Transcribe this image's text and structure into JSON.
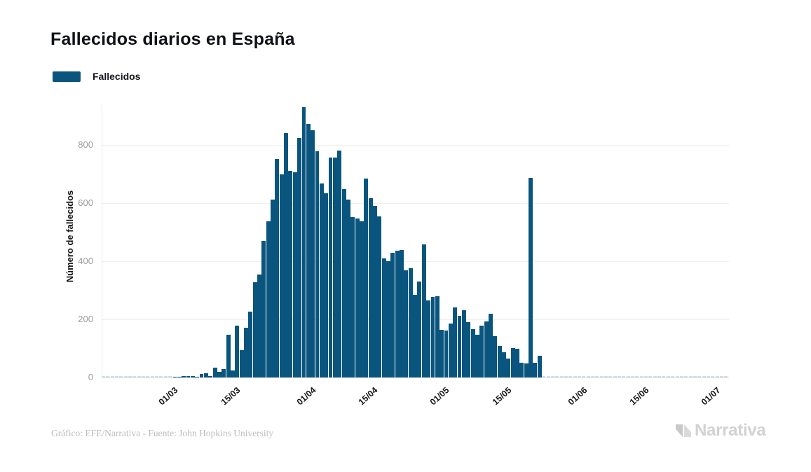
{
  "page": {
    "title": "Fallecidos diarios en España"
  },
  "legend": {
    "label": "Fallecidos"
  },
  "y_axis": {
    "title": "Número de fallecidos",
    "ticks": [
      0,
      200,
      400,
      600,
      800
    ]
  },
  "x_axis": {
    "ticks": [
      {
        "label": "01/03",
        "day": 14
      },
      {
        "label": "15/03",
        "day": 28
      },
      {
        "label": "01/04",
        "day": 45
      },
      {
        "label": "15/04",
        "day": 59
      },
      {
        "label": "01/05",
        "day": 75
      },
      {
        "label": "15/05",
        "day": 89
      },
      {
        "label": "01/06",
        "day": 106
      },
      {
        "label": "15/06",
        "day": 120
      },
      {
        "label": "01/07",
        "day": 136
      }
    ]
  },
  "footer": {
    "credit": "Gráfico: EFE/Narrativa - Fuente: John Hopkins University"
  },
  "logo": {
    "text": "Narrativa"
  },
  "colors": {
    "bar": "#0a557e",
    "zero_mark": "#cfdfe9",
    "grid": "#efefef",
    "y_label": "#9b9b9b",
    "x_label": "#17181a",
    "title": "#0e1116",
    "footer": "#bdbdbd",
    "logo": "#d2d2d2"
  },
  "chart_data": {
    "type": "bar",
    "title": "Fallecidos diarios en España",
    "xlabel": "",
    "ylabel": "Número de fallecidos",
    "ylim": [
      0,
      950
    ],
    "grid": true,
    "legend_position": "top-left",
    "domain": {
      "start_date": "16/02",
      "end_date": "05/07",
      "total_days": 141,
      "first_bar_day_index": 16
    },
    "series_name": "Fallecidos",
    "dates": [
      "03/03",
      "04/03",
      "05/03",
      "06/03",
      "07/03",
      "08/03",
      "09/03",
      "10/03",
      "11/03",
      "12/03",
      "13/03",
      "14/03",
      "15/03",
      "16/03",
      "17/03",
      "18/03",
      "19/03",
      "20/03",
      "21/03",
      "22/03",
      "23/03",
      "24/03",
      "25/03",
      "26/03",
      "27/03",
      "28/03",
      "29/03",
      "30/03",
      "31/03",
      "01/04",
      "02/04",
      "03/04",
      "04/04",
      "05/04",
      "06/04",
      "07/04",
      "08/04",
      "09/04",
      "10/04",
      "11/04",
      "12/04",
      "13/04",
      "14/04",
      "15/04",
      "16/04",
      "17/04",
      "18/04",
      "19/04",
      "20/04",
      "21/04",
      "22/04",
      "23/04",
      "24/04",
      "25/04",
      "26/04",
      "27/04",
      "28/04",
      "29/04",
      "30/04",
      "01/05",
      "02/05",
      "03/05",
      "04/05",
      "05/05",
      "06/05",
      "07/05",
      "08/05",
      "09/05",
      "10/05",
      "11/05",
      "12/05",
      "13/05",
      "14/05",
      "15/05",
      "16/05",
      "17/05",
      "18/05",
      "19/05",
      "20/05",
      "21/05",
      "22/05",
      "23/05",
      "24/05"
    ],
    "values": [
      1,
      2,
      4,
      4,
      4,
      2,
      12,
      15,
      4,
      35,
      19,
      29,
      148,
      23,
      178,
      95,
      172,
      226,
      329,
      355,
      472,
      540,
      615,
      755,
      700,
      844,
      714,
      708,
      826,
      934,
      876,
      852,
      781,
      670,
      635,
      759,
      760,
      783,
      650,
      615,
      554,
      549,
      538,
      686,
      619,
      592,
      557,
      410,
      402,
      431,
      437,
      440,
      370,
      376,
      285,
      330,
      459,
      265,
      279,
      281,
      165,
      163,
      185,
      241,
      213,
      231,
      190,
      166,
      147,
      179,
      193,
      221,
      142,
      108,
      88,
      66,
      102,
      100,
      50,
      48,
      689,
      50,
      76
    ]
  }
}
